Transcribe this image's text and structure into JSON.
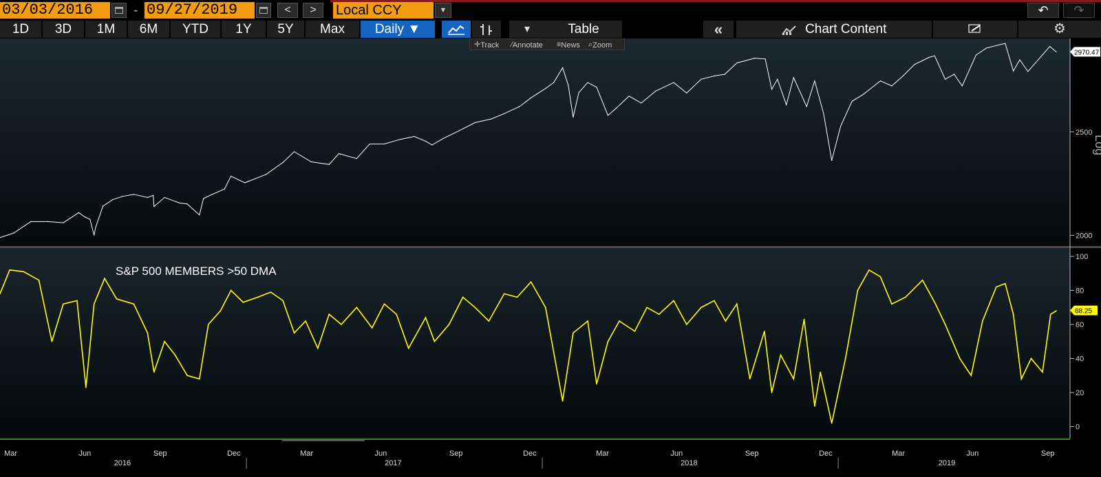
{
  "toolbar": {
    "start_date": "03/03/2016",
    "end_date": "09/27/2019",
    "date_separator": "-",
    "prev_label": "<",
    "next_label": ">",
    "currency": "Local CCY",
    "undo_label": "↶",
    "redo_label": "↷"
  },
  "periods": [
    "1D",
    "3D",
    "1M",
    "6M",
    "YTD",
    "1Y",
    "5Y",
    "Max"
  ],
  "frequency": "Daily ▼",
  "table_label": "Table",
  "collapse_label": "«",
  "chart_content_label": "Chart Content",
  "gear_label": "⚙",
  "subtools": [
    "Track",
    "Annotate",
    "News",
    "Zoom"
  ],
  "colors": {
    "accent_orange": "#f39c12",
    "selected_blue": "#1565c0",
    "upper_line": "#ffffff",
    "lower_line": "#ffff00",
    "divider_green": "#2e8b2e"
  },
  "chart_data": [
    {
      "type": "line",
      "title": "",
      "scale": "log",
      "ylabel": "Log",
      "yticks": [
        2000,
        2500
      ],
      "ylim": [
        1960,
        3030
      ],
      "last_value": "2970.47",
      "x": [
        "2016-03-03",
        "2016-03-20",
        "2016-04-10",
        "2016-05-01",
        "2016-05-20",
        "2016-06-08",
        "2016-06-16",
        "2016-06-22",
        "2016-06-27",
        "2016-06-29",
        "2016-07-08",
        "2016-07-20",
        "2016-08-01",
        "2016-08-15",
        "2016-09-01",
        "2016-09-08",
        "2016-09-09",
        "2016-09-22",
        "2016-10-10",
        "2016-10-20",
        "2016-11-04",
        "2016-11-09",
        "2016-11-20",
        "2016-12-05",
        "2016-12-13",
        "2016-12-30",
        "2017-01-25",
        "2017-02-15",
        "2017-03-01",
        "2017-03-22",
        "2017-04-13",
        "2017-04-25",
        "2017-05-17",
        "2017-06-02",
        "2017-06-20",
        "2017-07-10",
        "2017-07-27",
        "2017-08-10",
        "2017-08-18",
        "2017-09-01",
        "2017-09-20",
        "2017-10-10",
        "2017-10-30",
        "2017-11-15",
        "2017-12-04",
        "2017-12-18",
        "2018-01-05",
        "2018-01-15",
        "2018-01-26",
        "2018-02-02",
        "2018-02-08",
        "2018-02-15",
        "2018-02-26",
        "2018-03-09",
        "2018-03-23",
        "2018-04-02",
        "2018-04-18",
        "2018-05-03",
        "2018-05-21",
        "2018-06-12",
        "2018-06-28",
        "2018-07-16",
        "2018-08-01",
        "2018-08-14",
        "2018-08-29",
        "2018-09-20",
        "2018-10-03",
        "2018-10-11",
        "2018-10-18",
        "2018-10-29",
        "2018-11-07",
        "2018-11-23",
        "2018-12-03",
        "2018-12-14",
        "2018-12-24",
        "2019-01-04",
        "2019-01-18",
        "2019-02-01",
        "2019-02-22",
        "2019-03-08",
        "2019-03-22",
        "2019-04-05",
        "2019-04-23",
        "2019-04-30",
        "2019-05-13",
        "2019-05-24",
        "2019-06-03",
        "2019-06-20",
        "2019-07-03",
        "2019-07-26",
        "2019-08-05",
        "2019-08-13",
        "2019-08-23",
        "2019-09-03",
        "2019-09-19",
        "2019-09-27"
      ],
      "values": [
        1990,
        2010,
        2060,
        2060,
        2055,
        2100,
        2080,
        2070,
        2000,
        2035,
        2130,
        2160,
        2175,
        2185,
        2170,
        2180,
        2128,
        2170,
        2145,
        2140,
        2090,
        2165,
        2185,
        2210,
        2272,
        2240,
        2280,
        2340,
        2395,
        2343,
        2330,
        2385,
        2360,
        2435,
        2435,
        2460,
        2475,
        2450,
        2430,
        2465,
        2505,
        2550,
        2570,
        2600,
        2640,
        2690,
        2745,
        2780,
        2870,
        2765,
        2580,
        2720,
        2780,
        2752,
        2590,
        2630,
        2700,
        2660,
        2730,
        2780,
        2718,
        2800,
        2820,
        2830,
        2900,
        2930,
        2925,
        2740,
        2800,
        2650,
        2810,
        2640,
        2790,
        2600,
        2350,
        2530,
        2670,
        2710,
        2790,
        2760,
        2820,
        2890,
        2935,
        2945,
        2800,
        2830,
        2760,
        2950,
        2995,
        3025,
        2850,
        2920,
        2847,
        2910,
        3005,
        2970
      ]
    },
    {
      "type": "line",
      "title": "",
      "series_label": "S&P 500 MEMBERS >50 DMA",
      "yticks": [
        0,
        20,
        40,
        60,
        80,
        100
      ],
      "ylim": [
        -7,
        102
      ],
      "last_value": "68.25",
      "x": [
        "2016-03-03",
        "2016-03-15",
        "2016-04-01",
        "2016-04-20",
        "2016-05-06",
        "2016-05-20",
        "2016-06-06",
        "2016-06-17",
        "2016-06-27",
        "2016-07-10",
        "2016-07-25",
        "2016-08-15",
        "2016-09-01",
        "2016-09-09",
        "2016-09-22",
        "2016-10-05",
        "2016-10-20",
        "2016-11-04",
        "2016-11-15",
        "2016-11-30",
        "2016-12-13",
        "2016-12-28",
        "2017-01-15",
        "2017-01-31",
        "2017-02-15",
        "2017-03-01",
        "2017-03-15",
        "2017-03-30",
        "2017-04-13",
        "2017-04-28",
        "2017-05-17",
        "2017-06-05",
        "2017-06-20",
        "2017-07-05",
        "2017-07-20",
        "2017-08-10",
        "2017-08-21",
        "2017-09-08",
        "2017-09-25",
        "2017-10-10",
        "2017-10-27",
        "2017-11-15",
        "2017-12-01",
        "2017-12-18",
        "2018-01-05",
        "2018-01-26",
        "2018-02-08",
        "2018-02-26",
        "2018-03-09",
        "2018-03-23",
        "2018-04-06",
        "2018-04-25",
        "2018-05-10",
        "2018-05-25",
        "2018-06-12",
        "2018-06-28",
        "2018-07-16",
        "2018-08-01",
        "2018-08-15",
        "2018-08-29",
        "2018-09-14",
        "2018-10-02",
        "2018-10-11",
        "2018-10-22",
        "2018-11-07",
        "2018-11-20",
        "2018-12-03",
        "2018-12-10",
        "2018-12-24",
        "2019-01-10",
        "2019-01-25",
        "2019-02-08",
        "2019-02-22",
        "2019-03-08",
        "2019-03-25",
        "2019-04-15",
        "2019-05-01",
        "2019-05-13",
        "2019-05-31",
        "2019-06-14",
        "2019-06-28",
        "2019-07-15",
        "2019-07-26",
        "2019-08-05",
        "2019-08-15",
        "2019-08-27",
        "2019-09-10",
        "2019-09-20",
        "2019-09-27"
      ],
      "values": [
        78,
        92,
        91,
        86,
        50,
        72,
        74,
        23,
        72,
        87,
        75,
        72,
        55,
        32,
        50,
        42,
        30,
        28,
        60,
        68,
        80,
        73,
        76,
        79,
        74,
        55,
        62,
        46,
        66,
        60,
        70,
        58,
        72,
        66,
        46,
        64,
        50,
        60,
        76,
        70,
        62,
        78,
        76,
        85,
        70,
        15,
        55,
        62,
        25,
        50,
        62,
        56,
        70,
        66,
        74,
        60,
        70,
        74,
        62,
        72,
        28,
        56,
        20,
        42,
        28,
        63,
        12,
        32,
        2,
        40,
        80,
        92,
        88,
        72,
        76,
        86,
        72,
        60,
        40,
        30,
        62,
        82,
        84,
        66,
        28,
        40,
        32,
        66,
        68
      ]
    }
  ],
  "x_axis": {
    "months": [
      "Mar",
      "Jun",
      "Sep",
      "Dec",
      "Mar",
      "Jun",
      "Sep",
      "Dec",
      "Mar",
      "Jun",
      "Sep",
      "Dec",
      "Mar",
      "Jun",
      "Sep"
    ],
    "years": [
      "2016",
      "2017",
      "2018",
      "2019"
    ]
  }
}
